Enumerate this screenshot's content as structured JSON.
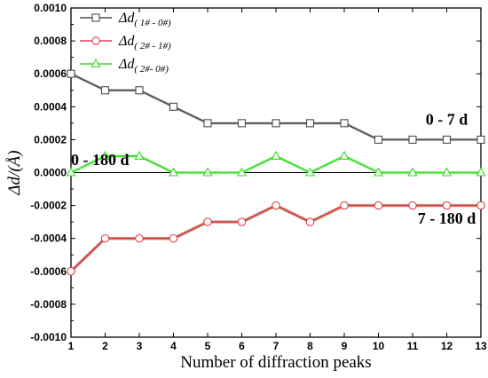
{
  "chart_data": {
    "type": "line",
    "xlabel": "Number of diffraction peaks",
    "ylabel": "Δd/(Å)",
    "xlim": [
      1,
      13
    ],
    "ylim": [
      -0.001,
      0.001
    ],
    "x": [
      1,
      2,
      3,
      4,
      5,
      6,
      7,
      8,
      9,
      10,
      11,
      12,
      13
    ],
    "xticks": [
      "1",
      "2",
      "3",
      "4",
      "5",
      "6",
      "7",
      "8",
      "9",
      "10",
      "11",
      "12",
      "13"
    ],
    "yticks": [
      -0.001,
      -0.0008,
      -0.0006,
      -0.0004,
      -0.0002,
      0,
      0.0002,
      0.0004,
      0.0006,
      0.0008,
      0.001
    ],
    "ytick_labels": [
      "-0.0010",
      "-0.0008",
      "-0.0006",
      "-0.0004",
      "-0.0002",
      "0.0000",
      "0.0002",
      "0.0004",
      "0.0006",
      "0.0008",
      "0.0010"
    ],
    "series": [
      {
        "name": "Δd(1#-0#)",
        "base": "Δd",
        "sub": "( 1# - 0#)",
        "marker": "square",
        "color": "#4d4d4d",
        "halo": "#bdbdbd",
        "values": [
          0.0006,
          0.0005,
          0.0005,
          0.0004,
          0.0003,
          0.0003,
          0.0003,
          0.0003,
          0.0003,
          0.0002,
          0.0002,
          0.0002,
          0.0002
        ]
      },
      {
        "name": "Δd(2#-1#)",
        "base": "Δd",
        "sub": "( 2# - 1#)",
        "marker": "circle",
        "color": "#e0404a",
        "halo": "#8a6a3a",
        "values": [
          -0.0006,
          -0.0004,
          -0.0004,
          -0.0004,
          -0.0003,
          -0.0003,
          -0.0002,
          -0.0003,
          -0.0002,
          -0.0002,
          -0.0002,
          -0.0002,
          -0.0002
        ]
      },
      {
        "name": "Δd(2#-0#)",
        "base": "Δd",
        "sub": "( 2#- 0#)",
        "marker": "triangle",
        "color": "#33dd22",
        "halo": "#a8f09c",
        "values": [
          0,
          0.0001,
          0.0001,
          0,
          0,
          0,
          0.0001,
          0,
          0.0001,
          0,
          0,
          0,
          0
        ]
      }
    ],
    "annotations": [
      {
        "text": "0 - 7 d",
        "x": 12,
        "y": 0.00029
      },
      {
        "text": "0 - 180 d",
        "x": 1.85,
        "y": 4.5e-05
      },
      {
        "text": "7 - 180 d",
        "x": 12,
        "y": -0.00031
      }
    ],
    "reference_line_y": 0,
    "grid": false,
    "legend_position": "top-left"
  }
}
